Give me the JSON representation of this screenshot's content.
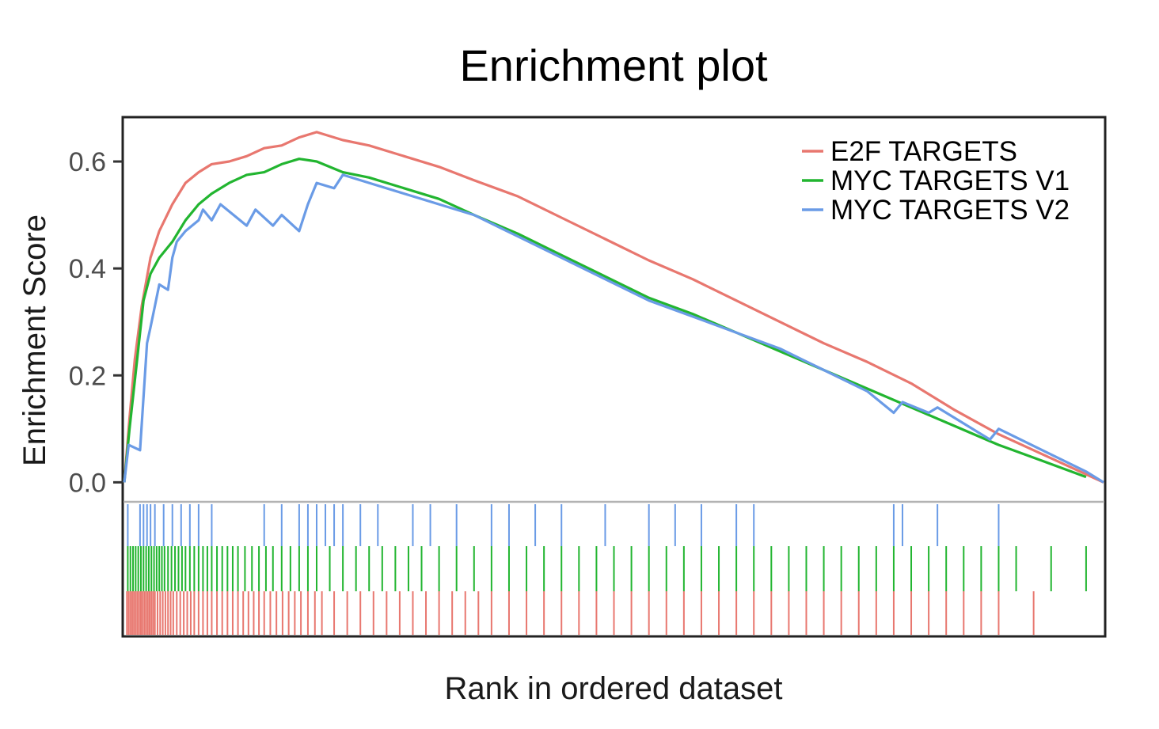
{
  "chart_data": {
    "type": "line",
    "title": "Enrichment plot",
    "xlabel": "Rank in ordered dataset",
    "ylabel": "Enrichment Score",
    "x_range": [
      0,
      1
    ],
    "ylim": [
      -0.035,
      0.68
    ],
    "yticks": [
      0.0,
      0.2,
      0.4,
      0.6
    ],
    "ytick_labels": [
      "0.0",
      "0.2",
      "0.4",
      "0.6"
    ],
    "grid": false,
    "legend_position": "top-right",
    "series": [
      {
        "name": "E2F TARGETS",
        "color": "#E8776F",
        "running_score": [
          [
            0.0,
            0.0
          ],
          [
            0.006,
            0.12
          ],
          [
            0.012,
            0.23
          ],
          [
            0.02,
            0.33
          ],
          [
            0.03,
            0.42
          ],
          [
            0.04,
            0.47
          ],
          [
            0.055,
            0.52
          ],
          [
            0.07,
            0.56
          ],
          [
            0.085,
            0.58
          ],
          [
            0.1,
            0.595
          ],
          [
            0.12,
            0.6
          ],
          [
            0.14,
            0.61
          ],
          [
            0.16,
            0.625
          ],
          [
            0.18,
            0.63
          ],
          [
            0.2,
            0.645
          ],
          [
            0.22,
            0.655
          ],
          [
            0.25,
            0.64
          ],
          [
            0.28,
            0.63
          ],
          [
            0.32,
            0.61
          ],
          [
            0.36,
            0.59
          ],
          [
            0.4,
            0.565
          ],
          [
            0.45,
            0.535
          ],
          [
            0.5,
            0.495
          ],
          [
            0.55,
            0.455
          ],
          [
            0.6,
            0.415
          ],
          [
            0.65,
            0.38
          ],
          [
            0.7,
            0.34
          ],
          [
            0.75,
            0.3
          ],
          [
            0.8,
            0.26
          ],
          [
            0.85,
            0.225
          ],
          [
            0.9,
            0.185
          ],
          [
            0.95,
            0.135
          ],
          [
            1.0,
            0.09
          ],
          [
            1.04,
            0.06
          ],
          [
            1.08,
            0.03
          ],
          [
            1.12,
            0.0
          ]
        ],
        "hits": [
          0.003,
          0.005,
          0.007,
          0.009,
          0.011,
          0.013,
          0.015,
          0.017,
          0.019,
          0.021,
          0.023,
          0.025,
          0.027,
          0.029,
          0.031,
          0.033,
          0.035,
          0.038,
          0.041,
          0.044,
          0.047,
          0.05,
          0.053,
          0.056,
          0.06,
          0.064,
          0.068,
          0.072,
          0.076,
          0.08,
          0.085,
          0.09,
          0.095,
          0.1,
          0.106,
          0.112,
          0.118,
          0.124,
          0.13,
          0.136,
          0.142,
          0.148,
          0.154,
          0.16,
          0.167,
          0.174,
          0.181,
          0.188,
          0.195,
          0.202,
          0.21,
          0.218,
          0.226,
          0.24,
          0.255,
          0.27,
          0.285,
          0.3,
          0.315,
          0.33,
          0.345,
          0.36,
          0.375,
          0.39,
          0.405,
          0.42,
          0.44,
          0.46,
          0.48,
          0.5,
          0.52,
          0.54,
          0.56,
          0.58,
          0.6,
          0.62,
          0.64,
          0.66,
          0.68,
          0.7,
          0.72,
          0.74,
          0.76,
          0.78,
          0.8,
          0.82,
          0.84,
          0.86,
          0.88,
          0.9,
          0.92,
          0.94,
          0.96,
          0.98,
          1.0,
          1.04
        ]
      },
      {
        "name": "MYC TARGETS V1",
        "color": "#22B530",
        "running_score": [
          [
            0.0,
            0.0
          ],
          [
            0.006,
            0.1
          ],
          [
            0.014,
            0.22
          ],
          [
            0.022,
            0.34
          ],
          [
            0.03,
            0.39
          ],
          [
            0.04,
            0.42
          ],
          [
            0.055,
            0.45
          ],
          [
            0.07,
            0.49
          ],
          [
            0.085,
            0.52
          ],
          [
            0.1,
            0.54
          ],
          [
            0.12,
            0.56
          ],
          [
            0.14,
            0.575
          ],
          [
            0.16,
            0.58
          ],
          [
            0.18,
            0.595
          ],
          [
            0.2,
            0.605
          ],
          [
            0.22,
            0.6
          ],
          [
            0.25,
            0.58
          ],
          [
            0.28,
            0.57
          ],
          [
            0.32,
            0.55
          ],
          [
            0.36,
            0.53
          ],
          [
            0.4,
            0.5
          ],
          [
            0.45,
            0.465
          ],
          [
            0.5,
            0.425
          ],
          [
            0.55,
            0.385
          ],
          [
            0.6,
            0.345
          ],
          [
            0.65,
            0.315
          ],
          [
            0.7,
            0.28
          ],
          [
            0.75,
            0.245
          ],
          [
            0.8,
            0.21
          ],
          [
            0.85,
            0.175
          ],
          [
            0.9,
            0.14
          ],
          [
            0.95,
            0.105
          ],
          [
            1.0,
            0.07
          ],
          [
            1.05,
            0.04
          ],
          [
            1.1,
            0.01
          ]
        ],
        "hits": [
          0.004,
          0.007,
          0.01,
          0.013,
          0.016,
          0.019,
          0.022,
          0.025,
          0.028,
          0.031,
          0.034,
          0.037,
          0.04,
          0.043,
          0.046,
          0.05,
          0.054,
          0.058,
          0.062,
          0.066,
          0.07,
          0.075,
          0.08,
          0.085,
          0.09,
          0.095,
          0.1,
          0.106,
          0.112,
          0.118,
          0.124,
          0.13,
          0.138,
          0.146,
          0.154,
          0.162,
          0.17,
          0.18,
          0.19,
          0.2,
          0.21,
          0.22,
          0.235,
          0.25,
          0.265,
          0.28,
          0.295,
          0.31,
          0.325,
          0.34,
          0.36,
          0.38,
          0.4,
          0.42,
          0.44,
          0.46,
          0.48,
          0.5,
          0.52,
          0.54,
          0.56,
          0.58,
          0.6,
          0.62,
          0.64,
          0.66,
          0.68,
          0.7,
          0.72,
          0.74,
          0.76,
          0.78,
          0.8,
          0.82,
          0.84,
          0.86,
          0.88,
          0.9,
          0.92,
          0.94,
          0.96,
          0.98,
          1.0,
          1.02,
          1.06,
          1.1
        ]
      },
      {
        "name": "MYC TARGETS V2",
        "color": "#6A9BE6",
        "running_score": [
          [
            0.0,
            0.0
          ],
          [
            0.005,
            0.07
          ],
          [
            0.018,
            0.06
          ],
          [
            0.022,
            0.16
          ],
          [
            0.026,
            0.26
          ],
          [
            0.03,
            0.29
          ],
          [
            0.035,
            0.33
          ],
          [
            0.04,
            0.37
          ],
          [
            0.05,
            0.36
          ],
          [
            0.055,
            0.42
          ],
          [
            0.06,
            0.45
          ],
          [
            0.07,
            0.47
          ],
          [
            0.085,
            0.49
          ],
          [
            0.09,
            0.51
          ],
          [
            0.1,
            0.49
          ],
          [
            0.11,
            0.52
          ],
          [
            0.14,
            0.48
          ],
          [
            0.15,
            0.51
          ],
          [
            0.17,
            0.48
          ],
          [
            0.18,
            0.5
          ],
          [
            0.2,
            0.47
          ],
          [
            0.21,
            0.52
          ],
          [
            0.22,
            0.56
          ],
          [
            0.24,
            0.55
          ],
          [
            0.25,
            0.575
          ],
          [
            0.28,
            0.56
          ],
          [
            0.32,
            0.54
          ],
          [
            0.36,
            0.52
          ],
          [
            0.4,
            0.5
          ],
          [
            0.45,
            0.46
          ],
          [
            0.5,
            0.42
          ],
          [
            0.55,
            0.38
          ],
          [
            0.6,
            0.34
          ],
          [
            0.65,
            0.31
          ],
          [
            0.7,
            0.28
          ],
          [
            0.75,
            0.25
          ],
          [
            0.8,
            0.21
          ],
          [
            0.85,
            0.17
          ],
          [
            0.88,
            0.13
          ],
          [
            0.89,
            0.15
          ],
          [
            0.92,
            0.13
          ],
          [
            0.93,
            0.14
          ],
          [
            0.99,
            0.08
          ],
          [
            1.0,
            0.1
          ],
          [
            1.05,
            0.06
          ],
          [
            1.1,
            0.02
          ],
          [
            1.12,
            0.0
          ]
        ],
        "hits": [
          0.004,
          0.018,
          0.022,
          0.026,
          0.03,
          0.035,
          0.045,
          0.055,
          0.065,
          0.075,
          0.085,
          0.1,
          0.16,
          0.18,
          0.2,
          0.21,
          0.22,
          0.23,
          0.24,
          0.25,
          0.27,
          0.29,
          0.33,
          0.35,
          0.38,
          0.42,
          0.44,
          0.47,
          0.5,
          0.55,
          0.6,
          0.63,
          0.66,
          0.7,
          0.72,
          0.88,
          0.89,
          0.93,
          1.0
        ]
      }
    ]
  }
}
